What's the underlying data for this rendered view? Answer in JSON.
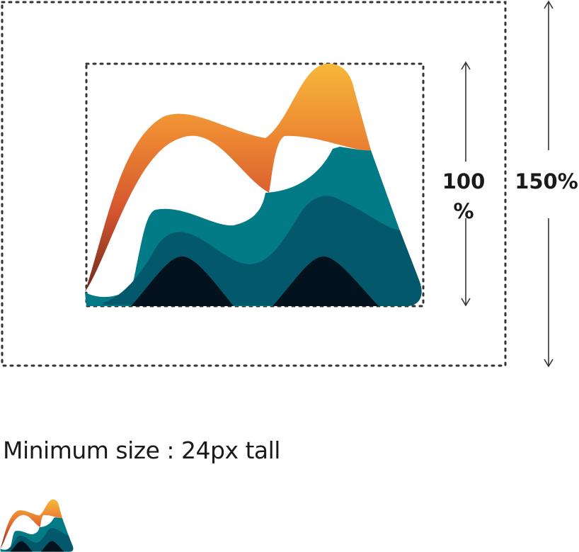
{
  "labels": {
    "inner_size": "100",
    "inner_size_unit": "%",
    "outer_size": "150%"
  },
  "caption": "Minimum size : 24px tall",
  "colors": {
    "orange_top": "#F5B83A",
    "orange_mid": "#EE7F33",
    "orange_low": "#D4552E",
    "orange_dark": "#7A2E22",
    "teal": "#037B87",
    "teal_dark": "#03596B",
    "navy": "#04121E",
    "guide": "#333333"
  }
}
